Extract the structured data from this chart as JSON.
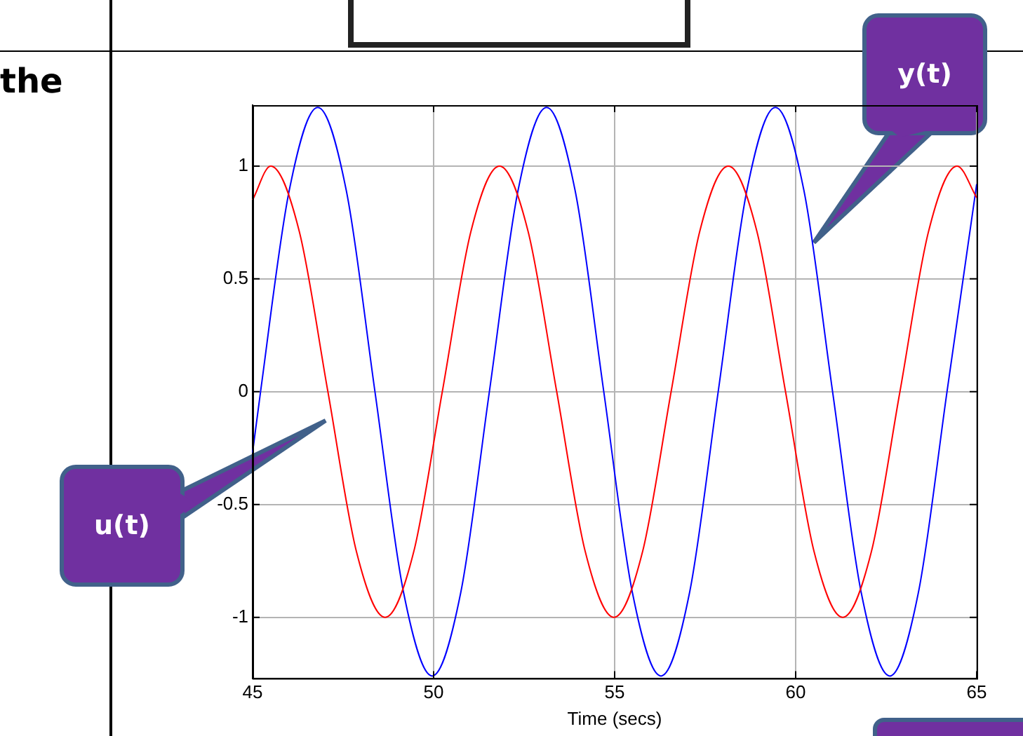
{
  "chart_data": {
    "type": "line",
    "xlabel": "Time (secs)",
    "xlim": [
      45,
      65
    ],
    "xticks": [
      45,
      50,
      55,
      60,
      65
    ],
    "ylim": [
      -1.27,
      1.27
    ],
    "yticks": [
      -1,
      -0.5,
      0,
      0.5,
      1
    ],
    "grid": true,
    "legend": false,
    "series": [
      {
        "color": "#ff0000",
        "x": [
          45,
          45.5,
          46.29,
          47.08,
          47.87,
          48.66,
          49.45,
          50.24,
          51.03,
          51.82,
          52.61,
          53.4,
          54.19,
          54.98,
          55.77,
          56.56,
          57.35,
          58.14,
          58.93,
          59.72,
          60.51,
          61.3,
          62.09,
          62.88,
          63.67,
          64.46,
          65
        ],
        "values": [
          0.85,
          1,
          0.71,
          0,
          -0.71,
          -1,
          -0.71,
          0,
          0.71,
          1,
          0.71,
          0,
          -0.71,
          -1,
          -0.71,
          0,
          0.71,
          1,
          0.71,
          0,
          -0.71,
          -1,
          -0.71,
          0,
          0.71,
          1,
          0.86
        ]
      },
      {
        "color": "#0000ff",
        "x": [
          45,
          45.22,
          46.01,
          46.8,
          47.59,
          48.38,
          49.17,
          49.96,
          50.75,
          51.54,
          52.33,
          53.12,
          53.91,
          54.7,
          55.49,
          56.28,
          57.07,
          57.86,
          58.65,
          59.44,
          60.23,
          61.02,
          61.81,
          62.6,
          63.39,
          64.18,
          65
        ],
        "values": [
          -0.27,
          0,
          0.89,
          1.26,
          0.89,
          0,
          -0.89,
          -1.26,
          -0.89,
          0,
          0.89,
          1.26,
          0.89,
          0,
          -0.89,
          -1.26,
          -0.89,
          0,
          0.89,
          1.26,
          0.89,
          0,
          -0.89,
          -1.26,
          -0.89,
          0,
          0.92
        ]
      }
    ],
    "annotations": [
      "the",
      "u(t)",
      "y(t)"
    ]
  }
}
